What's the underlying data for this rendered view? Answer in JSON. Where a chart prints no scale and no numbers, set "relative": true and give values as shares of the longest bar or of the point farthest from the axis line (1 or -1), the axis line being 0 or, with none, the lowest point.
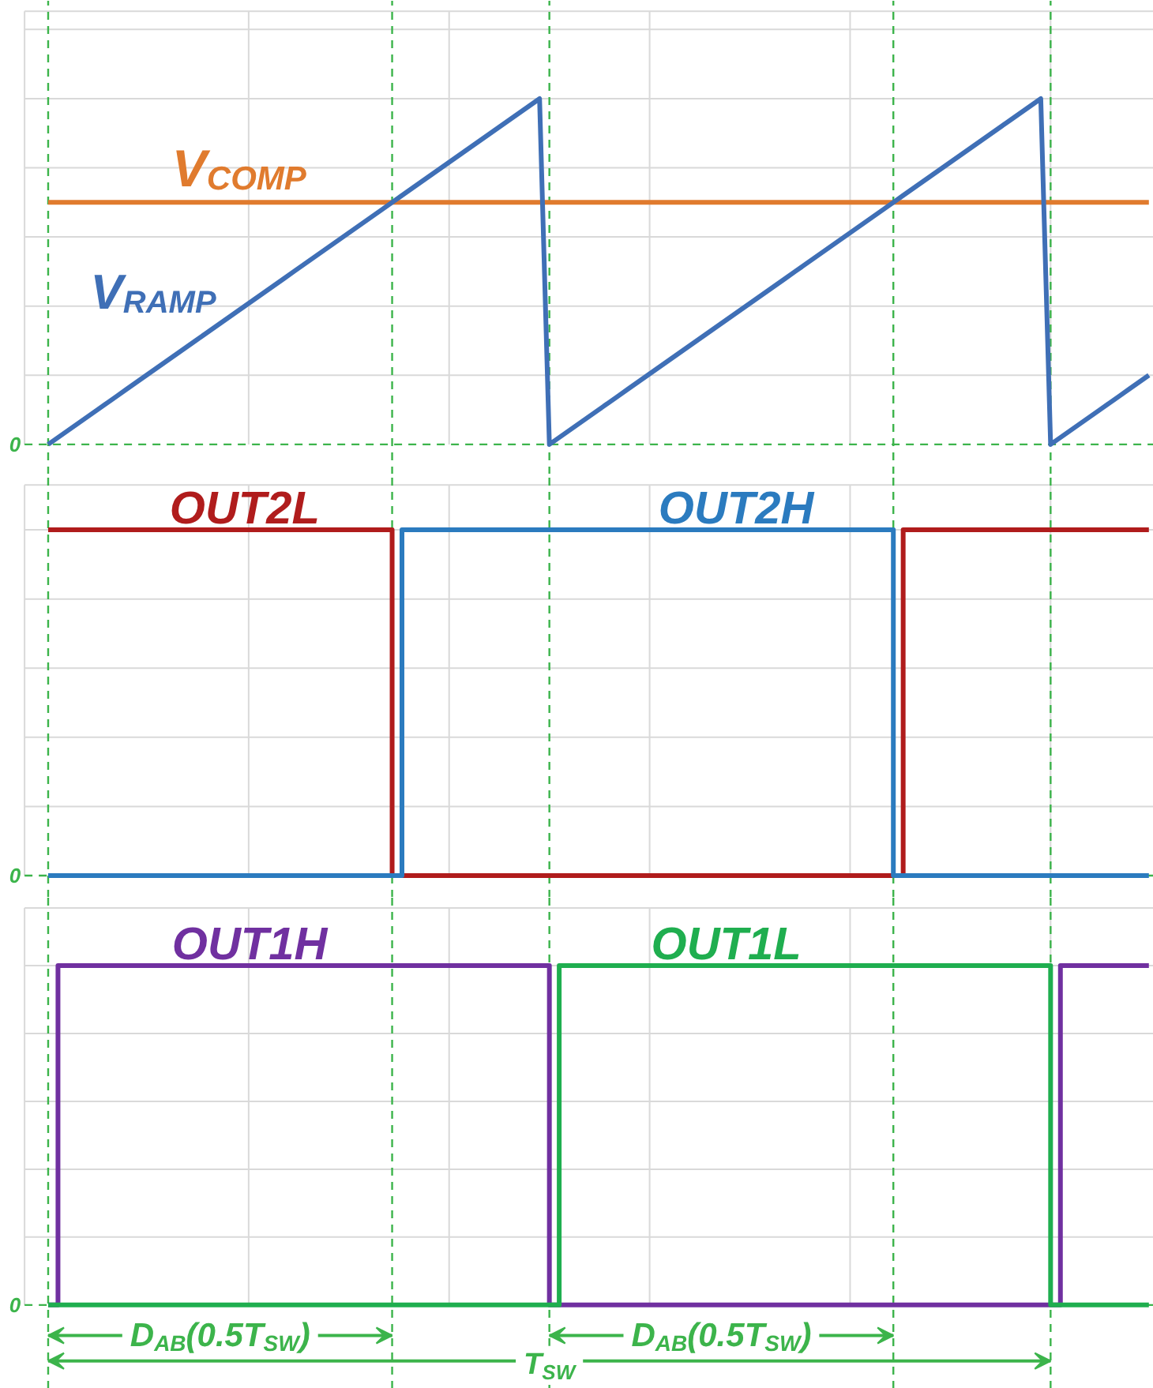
{
  "chart_data": [
    {
      "type": "line",
      "relative": true,
      "grid": true,
      "tick_labels": false,
      "categories": [
        null,
        null,
        null,
        null,
        null,
        null,
        null,
        null,
        null,
        null,
        null,
        null,
        null,
        null,
        null,
        null,
        null,
        null,
        null,
        null,
        null,
        null,
        null,
        null,
        null,
        null,
        null,
        null,
        null,
        null,
        null,
        null,
        null,
        null,
        null,
        null,
        null,
        null,
        null,
        null,
        null,
        null,
        null,
        null,
        null,
        null,
        null,
        null,
        null,
        null,
        null,
        null,
        null,
        null,
        null,
        null,
        null,
        null,
        null,
        null,
        null,
        null,
        null,
        null,
        null,
        null,
        null,
        null,
        null,
        null,
        null,
        null,
        null,
        null,
        null,
        null,
        null,
        null,
        null,
        null,
        null,
        null,
        null,
        null,
        null,
        null,
        null,
        null,
        null,
        null,
        null,
        null,
        null,
        null,
        null,
        null,
        null,
        null,
        null,
        null,
        null,
        null,
        null,
        null,
        null,
        null,
        null,
        null,
        null,
        null,
        null,
        null,
        null
      ],
      "series": [
        {
          "name": "V$_{COMP}$",
          "color": "#e07b2e",
          "values": [
            0.7,
            0.7,
            0.7,
            0.7,
            0.7,
            0.7,
            0.7,
            0.7,
            0.7,
            0.7,
            0.7,
            0.7,
            0.7,
            0.7,
            0.7,
            0.7,
            0.7,
            0.7,
            0.7,
            0.7,
            0.7,
            0.7,
            0.7,
            0.7,
            0.7,
            0.7,
            0.7,
            0.7,
            0.7,
            0.7,
            0.7,
            0.7,
            0.7,
            0.7,
            0.7,
            0.7,
            0.7,
            0.7,
            0.7,
            0.7,
            0.7,
            0.7,
            0.7,
            0.7,
            0.7,
            0.7,
            0.7,
            0.7,
            0.7,
            0.7,
            0.7,
            0.7,
            0.7,
            0.7,
            0.7,
            0.7,
            0.7,
            0.7,
            0.7,
            0.7,
            0.7,
            0.7,
            0.7,
            0.7,
            0.7,
            0.7,
            0.7,
            0.7,
            0.7,
            0.7,
            0.7,
            0.7,
            0.7,
            0.7,
            0.7,
            0.7,
            0.7,
            0.7,
            0.7,
            0.7,
            0.7,
            0.7,
            0.7,
            0.7,
            0.7,
            0.7,
            0.7,
            0.7,
            0.7,
            0.7,
            0.7,
            0.7,
            0.7,
            0.7,
            0.7,
            0.7,
            0.7,
            0.7,
            0.7,
            0.7,
            0.7,
            0.7,
            0.7,
            0.7,
            0.7,
            0.7,
            0.7,
            0.7,
            0.7,
            0.7,
            0.7,
            0.7,
            0.7
          ]
        },
        {
          "name": "V$_{RAMP}$",
          "color": "#3f6fb6",
          "values": [
            0,
            0.02,
            0.04,
            0.06,
            0.08,
            0.1,
            0.12,
            0.14,
            0.16,
            0.18,
            0.2,
            0.22,
            0.24,
            0.26,
            0.28,
            0.3,
            0.32,
            0.34,
            0.36,
            0.38,
            0.4,
            0.42,
            0.44,
            0.46,
            0.48,
            0.5,
            0.52,
            0.54,
            0.56,
            0.58,
            0.6,
            0.62,
            0.64,
            0.66,
            0.68,
            0.7,
            0.72,
            0.74,
            0.76,
            0.78,
            0.8,
            0.82,
            0.84,
            0.86,
            0.88,
            0.9,
            0.92,
            0.94,
            0.96,
            0.98,
            1,
            0,
            0.02,
            0.04,
            0.06,
            0.08,
            0.1,
            0.12,
            0.14,
            0.16,
            0.18,
            0.2,
            0.22,
            0.24,
            0.26,
            0.28,
            0.3,
            0.32,
            0.34,
            0.36,
            0.38,
            0.4,
            0.42,
            0.44,
            0.46,
            0.48,
            0.5,
            0.52,
            0.54,
            0.56,
            0.58,
            0.6,
            0.62,
            0.64,
            0.66,
            0.68,
            0.7,
            0.72,
            0.74,
            0.76,
            0.78,
            0.8,
            0.82,
            0.84,
            0.86,
            0.88,
            0.9,
            0.92,
            0.94,
            0.96,
            0.98,
            1,
            0,
            0.02,
            0.04,
            0.06,
            0.08,
            0.1,
            0.12,
            0.14,
            0.16,
            0.18,
            0.2
          ]
        }
      ],
      "annotations": [
        "0"
      ]
    },
    {
      "type": "step",
      "relative": true,
      "grid": true,
      "tick_labels": false,
      "categories": [
        null,
        null,
        null,
        null,
        null,
        null,
        null,
        null,
        null,
        null,
        null,
        null,
        null,
        null,
        null,
        null,
        null,
        null,
        null,
        null,
        null,
        null,
        null,
        null,
        null,
        null,
        null,
        null,
        null,
        null,
        null,
        null,
        null,
        null,
        null,
        null,
        null,
        null,
        null,
        null,
        null,
        null,
        null,
        null,
        null,
        null,
        null,
        null,
        null,
        null,
        null,
        null,
        null,
        null,
        null,
        null,
        null,
        null,
        null,
        null,
        null,
        null,
        null,
        null,
        null,
        null,
        null,
        null,
        null,
        null,
        null,
        null,
        null,
        null,
        null,
        null,
        null,
        null,
        null,
        null,
        null,
        null,
        null,
        null,
        null,
        null,
        null,
        null,
        null,
        null,
        null,
        null,
        null,
        null,
        null,
        null,
        null,
        null,
        null,
        null,
        null,
        null,
        null,
        null,
        null,
        null,
        null,
        null,
        null,
        null,
        null,
        null,
        null
      ],
      "series": [
        {
          "name": "OUT2L",
          "color": "#b01c1c",
          "values": [
            1,
            1,
            1,
            1,
            1,
            1,
            1,
            1,
            1,
            1,
            1,
            1,
            1,
            1,
            1,
            1,
            1,
            1,
            1,
            1,
            1,
            1,
            1,
            1,
            1,
            1,
            1,
            1,
            1,
            1,
            1,
            1,
            1,
            1,
            1,
            0,
            0,
            0,
            0,
            0,
            0,
            0,
            0,
            0,
            0,
            0,
            0,
            0,
            0,
            0,
            0,
            0,
            0,
            0,
            0,
            0,
            0,
            0,
            0,
            0,
            0,
            0,
            0,
            0,
            0,
            0,
            0,
            0,
            0,
            0,
            0,
            0,
            0,
            0,
            0,
            0,
            0,
            0,
            0,
            0,
            0,
            0,
            0,
            0,
            0,
            0,
            0,
            1,
            1,
            1,
            1,
            1,
            1,
            1,
            1,
            1,
            1,
            1,
            1,
            1,
            1,
            1,
            1,
            1,
            1,
            1,
            1,
            1,
            1,
            1,
            1,
            1,
            1
          ]
        },
        {
          "name": "OUT2H",
          "color": "#2b7bbf",
          "values": [
            0,
            0,
            0,
            0,
            0,
            0,
            0,
            0,
            0,
            0,
            0,
            0,
            0,
            0,
            0,
            0,
            0,
            0,
            0,
            0,
            0,
            0,
            0,
            0,
            0,
            0,
            0,
            0,
            0,
            0,
            0,
            0,
            0,
            0,
            0,
            0,
            1,
            1,
            1,
            1,
            1,
            1,
            1,
            1,
            1,
            1,
            1,
            1,
            1,
            1,
            1,
            1,
            1,
            1,
            1,
            1,
            1,
            1,
            1,
            1,
            1,
            1,
            1,
            1,
            1,
            1,
            1,
            1,
            1,
            1,
            1,
            1,
            1,
            1,
            1,
            1,
            1,
            1,
            1,
            1,
            1,
            1,
            1,
            1,
            1,
            1,
            0,
            0,
            0,
            0,
            0,
            0,
            0,
            0,
            0,
            0,
            0,
            0,
            0,
            0,
            0,
            0,
            0,
            0,
            0,
            0,
            0,
            0,
            0,
            0,
            0,
            0,
            0
          ]
        }
      ],
      "annotations": [
        "0"
      ]
    },
    {
      "type": "step",
      "relative": true,
      "grid": true,
      "tick_labels": false,
      "categories": [
        null,
        null,
        null,
        null,
        null,
        null,
        null,
        null,
        null,
        null,
        null,
        null,
        null,
        null,
        null,
        null,
        null,
        null,
        null,
        null,
        null,
        null,
        null,
        null,
        null,
        null,
        null,
        null,
        null,
        null,
        null,
        null,
        null,
        null,
        null,
        null,
        null,
        null,
        null,
        null,
        null,
        null,
        null,
        null,
        null,
        null,
        null,
        null,
        null,
        null,
        null,
        null,
        null,
        null,
        null,
        null,
        null,
        null,
        null,
        null,
        null,
        null,
        null,
        null,
        null,
        null,
        null,
        null,
        null,
        null,
        null,
        null,
        null,
        null,
        null,
        null,
        null,
        null,
        null,
        null,
        null,
        null,
        null,
        null,
        null,
        null,
        null,
        null,
        null,
        null,
        null,
        null,
        null,
        null,
        null,
        null,
        null,
        null,
        null,
        null,
        null,
        null,
        null,
        null,
        null,
        null,
        null,
        null,
        null,
        null,
        null,
        null,
        null
      ],
      "series": [
        {
          "name": "OUT1H",
          "color": "#7030a0",
          "values": [
            0,
            1,
            1,
            1,
            1,
            1,
            1,
            1,
            1,
            1,
            1,
            1,
            1,
            1,
            1,
            1,
            1,
            1,
            1,
            1,
            1,
            1,
            1,
            1,
            1,
            1,
            1,
            1,
            1,
            1,
            1,
            1,
            1,
            1,
            1,
            1,
            1,
            1,
            1,
            1,
            1,
            1,
            1,
            1,
            1,
            1,
            1,
            1,
            1,
            1,
            1,
            0,
            0,
            0,
            0,
            0,
            0,
            0,
            0,
            0,
            0,
            0,
            0,
            0,
            0,
            0,
            0,
            0,
            0,
            0,
            0,
            0,
            0,
            0,
            0,
            0,
            0,
            0,
            0,
            0,
            0,
            0,
            0,
            0,
            0,
            0,
            0,
            0,
            0,
            0,
            0,
            0,
            0,
            0,
            0,
            0,
            0,
            0,
            0,
            0,
            0,
            0,
            0,
            1,
            1,
            1,
            1,
            1,
            1,
            1,
            1,
            1,
            1
          ]
        },
        {
          "name": "OUT1L",
          "color": "#1fae4f",
          "values": [
            0,
            0,
            0,
            0,
            0,
            0,
            0,
            0,
            0,
            0,
            0,
            0,
            0,
            0,
            0,
            0,
            0,
            0,
            0,
            0,
            0,
            0,
            0,
            0,
            0,
            0,
            0,
            0,
            0,
            0,
            0,
            0,
            0,
            0,
            0,
            0,
            0,
            0,
            0,
            0,
            0,
            0,
            0,
            0,
            0,
            0,
            0,
            0,
            0,
            0,
            0,
            0,
            1,
            1,
            1,
            1,
            1,
            1,
            1,
            1,
            1,
            1,
            1,
            1,
            1,
            1,
            1,
            1,
            1,
            1,
            1,
            1,
            1,
            1,
            1,
            1,
            1,
            1,
            1,
            1,
            1,
            1,
            1,
            1,
            1,
            1,
            1,
            1,
            1,
            1,
            1,
            1,
            1,
            1,
            1,
            1,
            1,
            1,
            1,
            1,
            1,
            1,
            0,
            0,
            0,
            0,
            0,
            0,
            0,
            0,
            0,
            0,
            0
          ]
        }
      ],
      "annotations": [
        "0",
        "D$_{AB}$(0.5T$_{SW}$)",
        "D$_{AB}$(0.5T$_{SW}$)",
        "T$_{SW}$"
      ]
    }
  ]
}
